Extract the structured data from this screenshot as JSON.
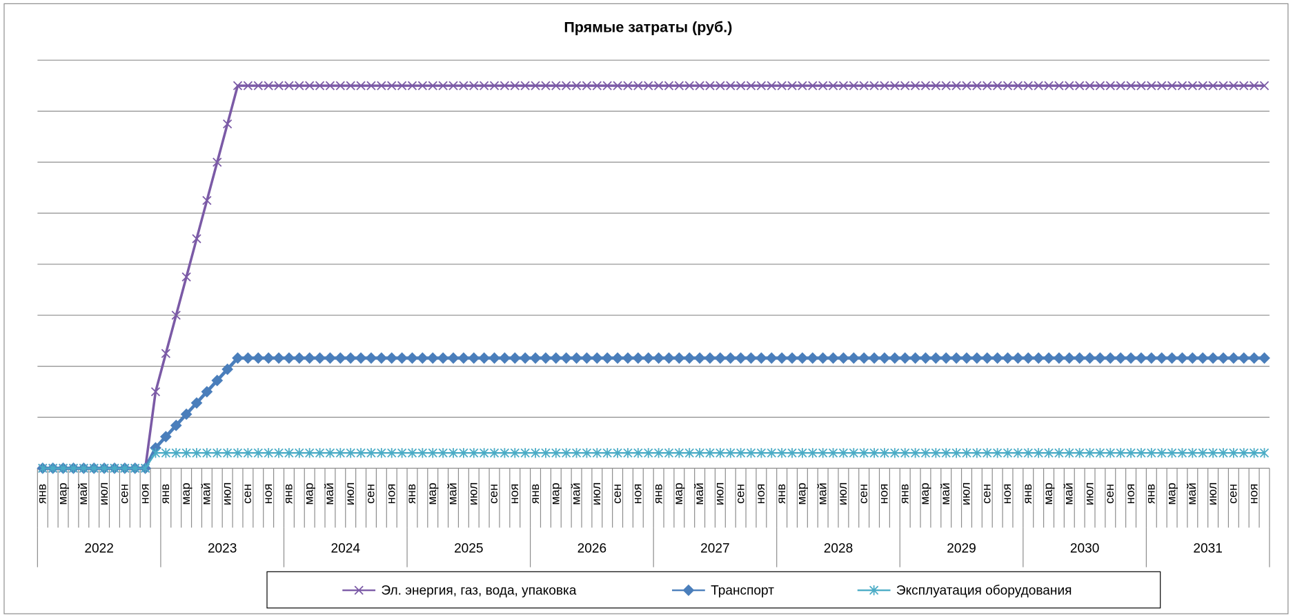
{
  "chart_data": {
    "type": "line",
    "title": "Прямые затраты (руб.)",
    "categories": [
      "янв",
      null,
      "мар",
      null,
      "май",
      null,
      "июл",
      null,
      "сен",
      null,
      "ноя",
      null,
      "янв",
      null,
      "мар",
      null,
      "май",
      null,
      "июл",
      null,
      "сен",
      null,
      "ноя",
      null,
      "янв",
      null,
      "мар",
      null,
      "май",
      null,
      "июл",
      null,
      "сен",
      null,
      "ноя",
      null,
      "янв",
      null,
      "мар",
      null,
      "май",
      null,
      "июл",
      null,
      "сен",
      null,
      "ноя",
      null,
      "янв",
      null,
      "мар",
      null,
      "май",
      null,
      "июл",
      null,
      "сен",
      null,
      "ноя",
      null,
      "янв",
      null,
      "мар",
      null,
      "май",
      null,
      "июл",
      null,
      "сен",
      null,
      "ноя",
      null,
      "янв",
      null,
      "мар",
      null,
      "май",
      null,
      "июл",
      null,
      "сен",
      null,
      "ноя",
      null,
      "янв",
      null,
      "мар",
      null,
      "май",
      null,
      "июл",
      null,
      "сен",
      null,
      "ноя",
      null,
      "янв",
      null,
      "мар",
      null,
      "май",
      null,
      "июл",
      null,
      "сен",
      null,
      "ноя",
      null,
      "янв",
      null,
      "мар",
      null,
      "май",
      null,
      "июл",
      null,
      "сен",
      null,
      "ноя",
      null
    ],
    "category_groups": [
      "2022",
      "2023",
      "2024",
      "2025",
      "2026",
      "2027",
      "2028",
      "2029",
      "2030",
      "2031"
    ],
    "series": [
      {
        "name": "Эл. энергия, газ, вода, упаковка",
        "color": "#7b5aa6",
        "marker": "x",
        "values": [
          0,
          0,
          0,
          0,
          0,
          0,
          0,
          0,
          0,
          0,
          0,
          1.5,
          2.25,
          3,
          3.75,
          4.5,
          5.25,
          6,
          6.75,
          7.5,
          7.5,
          7.5,
          7.5,
          7.5,
          7.5,
          7.5,
          7.5,
          7.5,
          7.5,
          7.5,
          7.5,
          7.5,
          7.5,
          7.5,
          7.5,
          7.5,
          7.5,
          7.5,
          7.5,
          7.5,
          7.5,
          7.5,
          7.5,
          7.5,
          7.5,
          7.5,
          7.5,
          7.5,
          7.5,
          7.5,
          7.5,
          7.5,
          7.5,
          7.5,
          7.5,
          7.5,
          7.5,
          7.5,
          7.5,
          7.5,
          7.5,
          7.5,
          7.5,
          7.5,
          7.5,
          7.5,
          7.5,
          7.5,
          7.5,
          7.5,
          7.5,
          7.5,
          7.5,
          7.5,
          7.5,
          7.5,
          7.5,
          7.5,
          7.5,
          7.5,
          7.5,
          7.5,
          7.5,
          7.5,
          7.5,
          7.5,
          7.5,
          7.5,
          7.5,
          7.5,
          7.5,
          7.5,
          7.5,
          7.5,
          7.5,
          7.5,
          7.5,
          7.5,
          7.5,
          7.5,
          7.5,
          7.5,
          7.5,
          7.5,
          7.5,
          7.5,
          7.5,
          7.5,
          7.5,
          7.5,
          7.5,
          7.5,
          7.5,
          7.5,
          7.5,
          7.5,
          7.5,
          7.5,
          7.5,
          7.5
        ]
      },
      {
        "name": "Транспорт",
        "color": "#4a7ebb",
        "marker": "diamond",
        "values": [
          0,
          0,
          0,
          0,
          0,
          0,
          0,
          0,
          0,
          0,
          0,
          0.4,
          0.62,
          0.84,
          1.06,
          1.28,
          1.5,
          1.72,
          1.94,
          2.16,
          2.16,
          2.16,
          2.16,
          2.16,
          2.16,
          2.16,
          2.16,
          2.16,
          2.16,
          2.16,
          2.16,
          2.16,
          2.16,
          2.16,
          2.16,
          2.16,
          2.16,
          2.16,
          2.16,
          2.16,
          2.16,
          2.16,
          2.16,
          2.16,
          2.16,
          2.16,
          2.16,
          2.16,
          2.16,
          2.16,
          2.16,
          2.16,
          2.16,
          2.16,
          2.16,
          2.16,
          2.16,
          2.16,
          2.16,
          2.16,
          2.16,
          2.16,
          2.16,
          2.16,
          2.16,
          2.16,
          2.16,
          2.16,
          2.16,
          2.16,
          2.16,
          2.16,
          2.16,
          2.16,
          2.16,
          2.16,
          2.16,
          2.16,
          2.16,
          2.16,
          2.16,
          2.16,
          2.16,
          2.16,
          2.16,
          2.16,
          2.16,
          2.16,
          2.16,
          2.16,
          2.16,
          2.16,
          2.16,
          2.16,
          2.16,
          2.16,
          2.16,
          2.16,
          2.16,
          2.16,
          2.16,
          2.16,
          2.16,
          2.16,
          2.16,
          2.16,
          2.16,
          2.16,
          2.16,
          2.16,
          2.16,
          2.16,
          2.16,
          2.16,
          2.16,
          2.16,
          2.16,
          2.16,
          2.16,
          2.16
        ]
      },
      {
        "name": "Эксплуатация оборудования",
        "color": "#4bacc6",
        "marker": "star",
        "values": [
          0,
          0,
          0,
          0,
          0,
          0,
          0,
          0,
          0,
          0,
          0,
          0.3,
          0.3,
          0.3,
          0.3,
          0.3,
          0.3,
          0.3,
          0.3,
          0.3,
          0.3,
          0.3,
          0.3,
          0.3,
          0.3,
          0.3,
          0.3,
          0.3,
          0.3,
          0.3,
          0.3,
          0.3,
          0.3,
          0.3,
          0.3,
          0.3,
          0.3,
          0.3,
          0.3,
          0.3,
          0.3,
          0.3,
          0.3,
          0.3,
          0.3,
          0.3,
          0.3,
          0.3,
          0.3,
          0.3,
          0.3,
          0.3,
          0.3,
          0.3,
          0.3,
          0.3,
          0.3,
          0.3,
          0.3,
          0.3,
          0.3,
          0.3,
          0.3,
          0.3,
          0.3,
          0.3,
          0.3,
          0.3,
          0.3,
          0.3,
          0.3,
          0.3,
          0.3,
          0.3,
          0.3,
          0.3,
          0.3,
          0.3,
          0.3,
          0.3,
          0.3,
          0.3,
          0.3,
          0.3,
          0.3,
          0.3,
          0.3,
          0.3,
          0.3,
          0.3,
          0.3,
          0.3,
          0.3,
          0.3,
          0.3,
          0.3,
          0.3,
          0.3,
          0.3,
          0.3,
          0.3,
          0.3,
          0.3,
          0.3,
          0.3,
          0.3,
          0.3,
          0.3,
          0.3,
          0.3,
          0.3,
          0.3,
          0.3,
          0.3,
          0.3,
          0.3,
          0.3,
          0.3,
          0.3,
          0.3
        ]
      }
    ],
    "ylim": [
      0,
      8
    ],
    "yticks": [
      0,
      1,
      2,
      3,
      4,
      5,
      6,
      7,
      8
    ],
    "grid": true,
    "legend": "bottom"
  }
}
